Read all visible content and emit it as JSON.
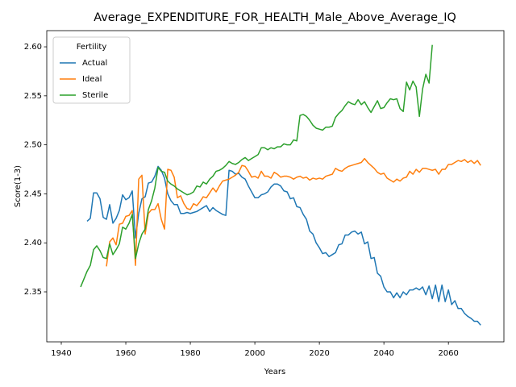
{
  "chart_data": {
    "type": "line",
    "title": "Average_EXPENDITURE_FOR_HEALTH_Male_Above_Average_IQ",
    "x_label": "Years",
    "y_label": "Score(1-3)",
    "legend_title": "Fertility",
    "legend": "upper left",
    "xlim": [
      1935.5,
      2077.2
    ],
    "ylim": [
      2.299,
      2.6165
    ],
    "xticks": [
      1940,
      1960,
      1980,
      2000,
      2020,
      2040,
      2060
    ],
    "yticks": [
      2.35,
      {
        "value": 2.4,
        "label": "2.40"
      },
      2.45,
      {
        "value": 2.5,
        "label": "2.50"
      },
      2.55,
      {
        "value": 2.6,
        "label": "2.60"
      }
    ],
    "x": [
      1946,
      1947,
      1948,
      1949,
      1950,
      1951,
      1952,
      1953,
      1954,
      1955,
      1956,
      1957,
      1958,
      1959,
      1960,
      1961,
      1962,
      1963,
      1964,
      1965,
      1966,
      1967,
      1968,
      1969,
      1970,
      1971,
      1972,
      1973,
      1974,
      1975,
      1976,
      1977,
      1978,
      1979,
      1980,
      1981,
      1982,
      1983,
      1984,
      1985,
      1986,
      1987,
      1988,
      1989,
      1990,
      1991,
      1992,
      1993,
      1994,
      1995,
      1996,
      1997,
      1998,
      1999,
      2000,
      2001,
      2002,
      2003,
      2004,
      2005,
      2006,
      2007,
      2008,
      2009,
      2010,
      2011,
      2012,
      2013,
      2014,
      2015,
      2016,
      2017,
      2018,
      2019,
      2020,
      2021,
      2022,
      2023,
      2024,
      2025,
      2026,
      2027,
      2028,
      2029,
      2030,
      2031,
      2032,
      2033,
      2034,
      2035,
      2036,
      2037,
      2038,
      2039,
      2040,
      2041,
      2042,
      2043,
      2044,
      2045,
      2046,
      2047,
      2048,
      2049,
      2050,
      2051,
      2052,
      2053,
      2054,
      2055,
      2056,
      2057,
      2058,
      2059,
      2060,
      2061,
      2062,
      2063,
      2064,
      2065,
      2066,
      2067,
      2068,
      2069,
      2070
    ],
    "series": [
      {
        "name": "Actual",
        "color": "#1f77b4",
        "values": [
          null,
          null,
          2.422,
          2.425,
          2.451,
          2.451,
          2.445,
          2.426,
          2.424,
          2.439,
          2.42,
          2.425,
          2.433,
          2.449,
          2.444,
          2.446,
          2.453,
          2.405,
          2.43,
          2.445,
          2.447,
          2.461,
          2.462,
          2.468,
          2.478,
          2.474,
          2.466,
          2.45,
          2.443,
          2.439,
          2.439,
          2.43,
          2.43,
          2.431,
          2.43,
          2.431,
          2.432,
          2.434,
          2.436,
          2.438,
          2.432,
          2.436,
          2.433,
          2.431,
          2.429,
          2.428,
          2.474,
          2.473,
          2.47,
          2.471,
          2.467,
          2.465,
          2.458,
          2.452,
          2.446,
          2.446,
          2.449,
          2.45,
          2.452,
          2.457,
          2.46,
          2.46,
          2.458,
          2.453,
          2.452,
          2.445,
          2.446,
          2.437,
          2.436,
          2.429,
          2.424,
          2.412,
          2.409,
          2.4,
          2.395,
          2.389,
          2.39,
          2.386,
          2.388,
          2.39,
          2.398,
          2.399,
          2.408,
          2.408,
          2.411,
          2.412,
          2.409,
          2.411,
          2.399,
          2.401,
          2.384,
          2.385,
          2.369,
          2.366,
          2.355,
          2.35,
          2.35,
          2.344,
          2.349,
          2.344,
          2.35,
          2.347,
          2.352,
          2.352,
          2.354,
          2.352,
          2.355,
          2.347,
          2.356,
          2.343,
          2.357,
          2.34,
          2.357,
          2.34,
          2.352,
          2.337,
          2.341,
          2.333,
          2.333,
          2.328,
          2.325,
          2.323,
          2.32,
          2.32,
          2.316
        ]
      },
      {
        "name": "Ideal",
        "color": "#ff7f0e",
        "values": [
          null,
          null,
          null,
          null,
          null,
          null,
          null,
          null,
          2.376,
          2.401,
          2.405,
          2.398,
          2.419,
          2.42,
          2.427,
          2.428,
          2.433,
          2.377,
          2.465,
          2.469,
          2.409,
          2.43,
          2.434,
          2.434,
          2.44,
          2.424,
          2.414,
          2.475,
          2.474,
          2.467,
          2.446,
          2.448,
          2.44,
          2.435,
          2.434,
          2.44,
          2.438,
          2.442,
          2.447,
          2.446,
          2.451,
          2.456,
          2.452,
          2.458,
          2.463,
          2.464,
          2.465,
          2.467,
          2.469,
          2.472,
          2.479,
          2.478,
          2.473,
          2.467,
          2.468,
          2.466,
          2.473,
          2.468,
          2.468,
          2.466,
          2.472,
          2.47,
          2.467,
          2.468,
          2.468,
          2.467,
          2.465,
          2.467,
          2.468,
          2.466,
          2.467,
          2.464,
          2.466,
          2.465,
          2.466,
          2.465,
          2.468,
          2.469,
          2.47,
          2.476,
          2.474,
          2.473,
          2.476,
          2.478,
          2.479,
          2.48,
          2.481,
          2.482,
          2.486,
          2.482,
          2.479,
          2.476,
          2.472,
          2.47,
          2.471,
          2.466,
          2.464,
          2.462,
          2.465,
          2.463,
          2.466,
          2.467,
          2.473,
          2.47,
          2.475,
          2.472,
          2.476,
          2.476,
          2.475,
          2.474,
          2.475,
          2.47,
          2.475,
          2.475,
          2.48,
          2.48,
          2.482,
          2.484,
          2.483,
          2.485,
          2.482,
          2.484,
          2.481,
          2.484,
          2.479
        ]
      },
      {
        "name": "Sterile",
        "color": "#2ca02c",
        "values": [
          2.355,
          2.363,
          2.371,
          2.377,
          2.393,
          2.397,
          2.392,
          2.385,
          2.384,
          2.399,
          2.388,
          2.393,
          2.399,
          2.416,
          2.414,
          2.42,
          2.429,
          2.384,
          2.399,
          2.409,
          2.414,
          2.434,
          2.443,
          2.456,
          2.477,
          2.473,
          2.472,
          2.463,
          2.46,
          2.458,
          2.455,
          2.453,
          2.451,
          2.449,
          2.45,
          2.452,
          2.458,
          2.457,
          2.462,
          2.46,
          2.465,
          2.468,
          2.473,
          2.474,
          2.476,
          2.479,
          2.483,
          2.481,
          2.48,
          2.482,
          2.485,
          2.487,
          2.484,
          2.486,
          2.488,
          2.49,
          2.497,
          2.497,
          2.495,
          2.497,
          2.496,
          2.498,
          2.498,
          2.501,
          2.5,
          2.5,
          2.505,
          2.504,
          2.53,
          2.531,
          2.529,
          2.525,
          2.52,
          2.517,
          2.516,
          2.515,
          2.518,
          2.518,
          2.519,
          2.528,
          2.532,
          2.535,
          2.54,
          2.544,
          2.542,
          2.541,
          2.546,
          2.541,
          2.544,
          2.538,
          2.533,
          2.539,
          2.545,
          2.537,
          2.538,
          2.543,
          2.547,
          2.546,
          2.547,
          2.537,
          2.534,
          2.564,
          2.556,
          2.565,
          2.559,
          2.529,
          2.557,
          2.572,
          2.563,
          2.602,
          null,
          null,
          null,
          null,
          null,
          null,
          null,
          null,
          null,
          null,
          null,
          null,
          null,
          null,
          null
        ]
      }
    ]
  }
}
